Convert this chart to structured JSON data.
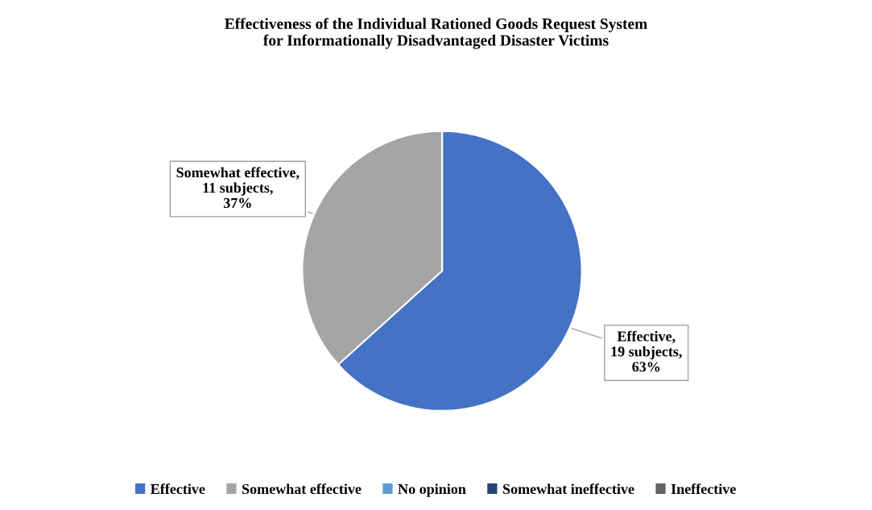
{
  "chart_data": {
    "type": "pie",
    "title": "Effectiveness of the Individual Rationed Goods Request System\nfor Informationally Disadvantaged Disaster Victims",
    "categories": [
      "Effective",
      "Somewhat effective",
      "No opinion",
      "Somewhat ineffective",
      "Ineffective"
    ],
    "values": [
      19,
      11,
      0,
      0,
      0
    ],
    "colors": [
      "#4472c4",
      "#a5a5a5",
      "#5b9bd5",
      "#264478",
      "#636363"
    ],
    "value_labels": [
      "Effective,\n19 subjects,\n63%",
      "Somewhat effective,\n11 subjects,\n37%",
      null,
      null,
      null
    ],
    "legend": "bottom"
  }
}
